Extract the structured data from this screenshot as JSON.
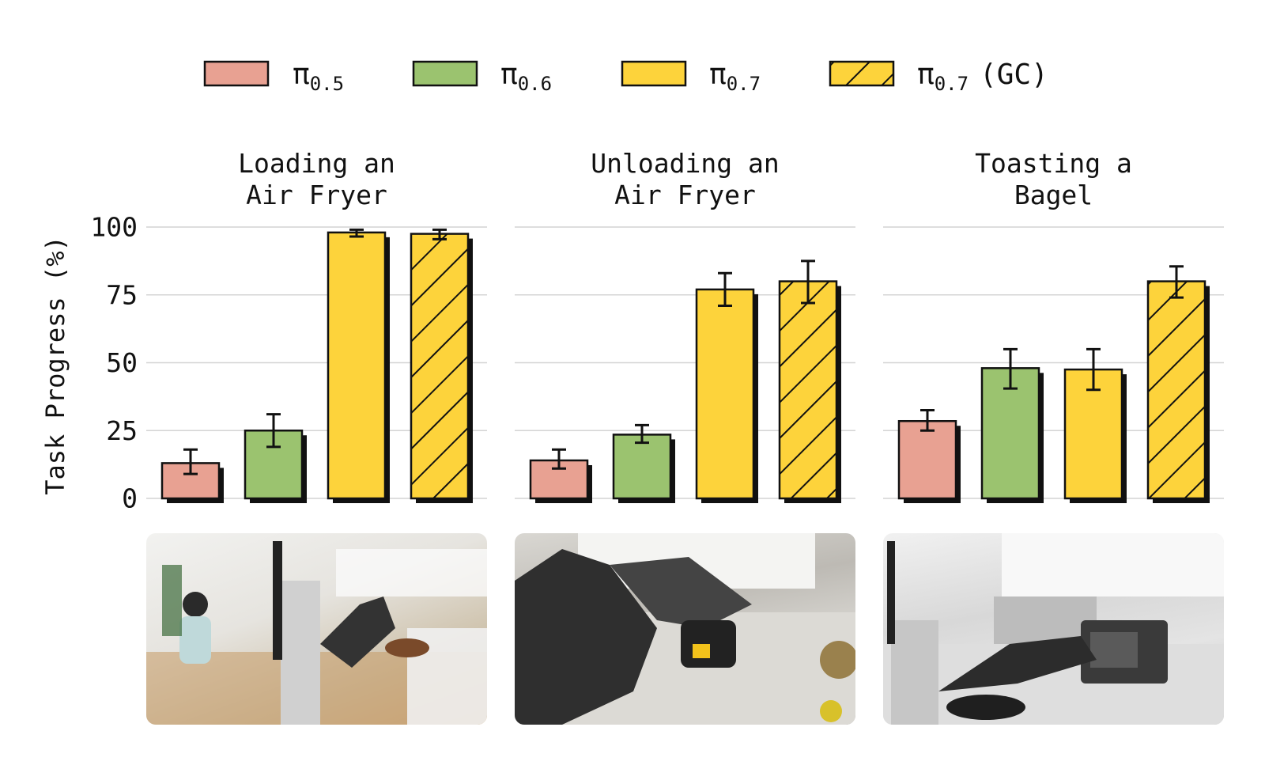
{
  "legend": [
    {
      "symbol": "π",
      "sub": "0.5",
      "suffix": "",
      "color": "#e8a192",
      "hatch": false
    },
    {
      "symbol": "π",
      "sub": "0.6",
      "suffix": "",
      "color": "#9bc36f",
      "hatch": false
    },
    {
      "symbol": "π",
      "sub": "0.7",
      "suffix": "",
      "color": "#fdd33b",
      "hatch": false
    },
    {
      "symbol": "π",
      "sub": "0.7",
      "suffix": "(GC)",
      "color": "#fdd33b",
      "hatch": true
    }
  ],
  "chart_data": {
    "type": "bar",
    "ylabel": "Task Progress (%)",
    "ylim": [
      0,
      100
    ],
    "yticks": [
      "0",
      "25",
      "50",
      "75",
      "100"
    ],
    "grid": true,
    "legend_position": "top",
    "series_colors": [
      "#e8a192",
      "#9bc36f",
      "#fdd33b",
      "#fdd33b"
    ],
    "series_hatch": [
      false,
      false,
      false,
      true
    ],
    "panels": [
      {
        "title": [
          "Loading an",
          "Air Fryer"
        ],
        "values": [
          13,
          25,
          98,
          97.5
        ],
        "err_low": [
          9,
          19,
          96.5,
          95.5
        ],
        "err_high": [
          18,
          31,
          99,
          99
        ]
      },
      {
        "title": [
          "Unloading an",
          "Air Fryer"
        ],
        "values": [
          14,
          23.5,
          77,
          80
        ],
        "err_low": [
          11,
          20.5,
          71,
          72
        ],
        "err_high": [
          18,
          27,
          83,
          87.5
        ]
      },
      {
        "title": [
          "Toasting a",
          "Bagel"
        ],
        "values": [
          28.5,
          48,
          47.5,
          80
        ],
        "err_low": [
          25,
          40.5,
          40,
          74
        ],
        "err_high": [
          32.5,
          55,
          55,
          85.5
        ]
      }
    ]
  },
  "photos": [
    {
      "icon": "air-fryer-loading-photo-icon"
    },
    {
      "icon": "air-fryer-unloading-photo-icon"
    },
    {
      "icon": "bagel-toasting-photo-icon"
    }
  ]
}
